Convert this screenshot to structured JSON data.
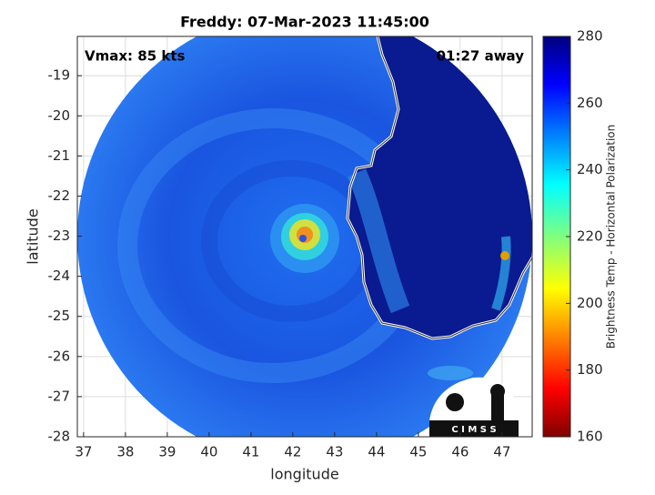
{
  "chart_data": {
    "type": "map",
    "title": "Freddy: 07-Mar-2023 11:45:00",
    "annotations": [
      "Vmax: 85 kts",
      "01:27 away"
    ],
    "x_label": "longitude",
    "y_label": "latitude",
    "xlim": [
      36.85,
      47.72
    ],
    "xticks": [
      37,
      38,
      39,
      40,
      41,
      42,
      43,
      44,
      45,
      46,
      47
    ],
    "ylim": [
      -28,
      -18.02
    ],
    "yticks": [
      -28,
      -27,
      -26,
      -25,
      -24,
      -23,
      -22,
      -21,
      -20,
      -19
    ],
    "grid": true,
    "colorbar": {
      "label": "Brightness Temp - Horizontal Polarization",
      "lim": [
        160,
        280
      ],
      "ticks": [
        160,
        180,
        200,
        220,
        240,
        260,
        280
      ]
    },
    "logo": "C I M S S"
  }
}
